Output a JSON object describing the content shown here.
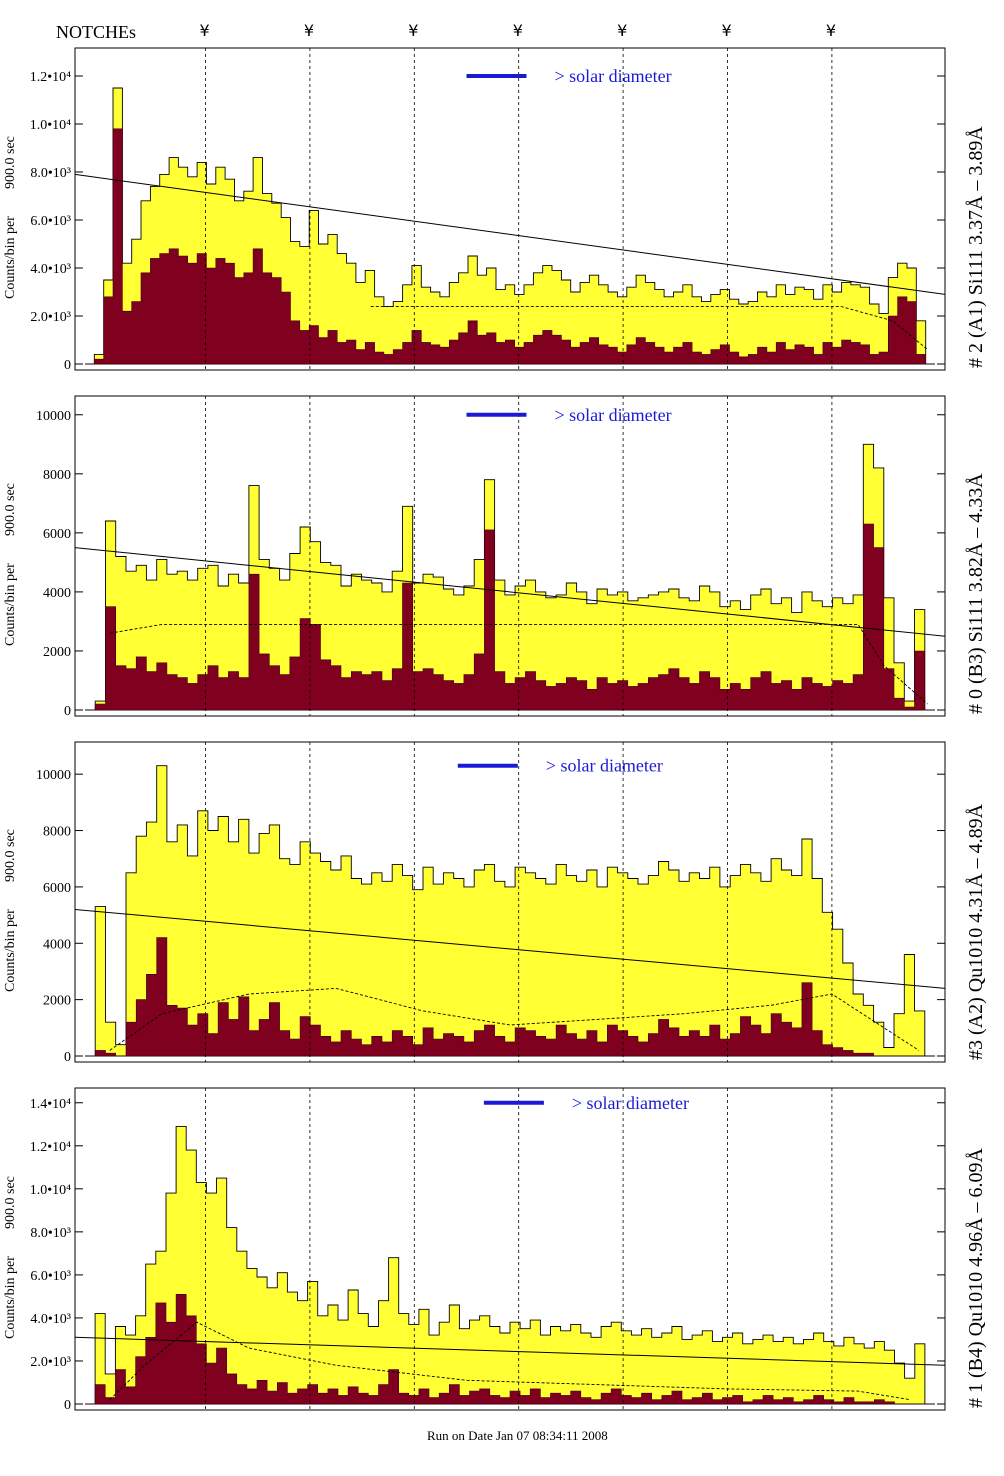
{
  "header": {
    "notches_label": "NOTCHEs",
    "notch_symbol": "¥",
    "notch_positions_x": [
      0.17,
      0.29,
      0.41,
      0.53,
      0.65,
      0.77,
      0.89
    ]
  },
  "footer": {
    "text": "Run on Date Jan 07 08:34:11 2008"
  },
  "legend": {
    "text": "> solar diameter",
    "color": "#1a1ad6"
  },
  "colors": {
    "total_fill": "#ffff33",
    "sub_fill": "#800020",
    "frame": "#000000"
  },
  "y_axis_title": [
    "Counts/bin per",
    "900.0 sec"
  ],
  "chart_data": [
    {
      "type": "histogram",
      "title": "# 2 (A1) Si111  3.37Å – 3.89Å",
      "ylabel": "Counts/bin per 900.0 sec",
      "ylim": [
        0,
        13000
      ],
      "yticks": [
        {
          "v": 0,
          "t": "0"
        },
        {
          "v": 2000,
          "t": "2.0•10³"
        },
        {
          "v": 4000,
          "t": "4.0•10³"
        },
        {
          "v": 6000,
          "t": "6.0•10³"
        },
        {
          "v": 8000,
          "t": "8.0•10³"
        },
        {
          "v": 10000,
          "t": "1.0•10⁴"
        },
        {
          "v": 12000,
          "t": "1.2•10⁴"
        }
      ],
      "envelope_total": [
        0,
        400,
        3500,
        11500,
        4200,
        5200,
        6800,
        7400,
        7900,
        8600,
        8200,
        7800,
        8400,
        7500,
        8200,
        7700,
        6800,
        7200,
        8600,
        7100,
        6700,
        6100,
        5100,
        4900,
        6400,
        5000,
        5400,
        4600,
        4200,
        3400,
        3900,
        2800,
        2400,
        2600,
        3300,
        4100,
        3200,
        3000,
        2800,
        3400,
        3800,
        4500,
        3700,
        4000,
        3100,
        3300,
        2900,
        3300,
        3800,
        4100,
        3900,
        3500,
        3000,
        3400,
        3700,
        3300,
        3000,
        2800,
        3200,
        3700,
        3400,
        3100,
        2800,
        3000,
        3300,
        2800,
        2600,
        2900,
        3100,
        2700,
        2500,
        2600,
        3000,
        2800,
        3300,
        2900,
        3200,
        3100,
        2700,
        3300,
        3000,
        3400,
        3300,
        3200,
        2500,
        2100,
        3600,
        4200,
        4000,
        1800,
        0
      ],
      "envelope_sub": [
        0,
        200,
        2800,
        9800,
        2200,
        2600,
        3800,
        4400,
        4600,
        4800,
        4500,
        4200,
        4600,
        4000,
        4400,
        4200,
        3600,
        3800,
        4800,
        3800,
        3600,
        3000,
        1800,
        1400,
        1600,
        1100,
        1400,
        900,
        1000,
        600,
        900,
        500,
        400,
        600,
        900,
        1400,
        900,
        800,
        700,
        1000,
        1300,
        1800,
        1200,
        1300,
        900,
        1000,
        700,
        900,
        1200,
        1400,
        1200,
        1000,
        700,
        900,
        1100,
        800,
        700,
        500,
        800,
        1100,
        900,
        700,
        500,
        700,
        900,
        500,
        400,
        600,
        800,
        500,
        300,
        400,
        700,
        500,
        900,
        600,
        800,
        700,
        400,
        900,
        700,
        1000,
        900,
        800,
        400,
        500,
        2000,
        2800,
        2600,
        400,
        0
      ],
      "fit_line": [
        [
          0,
          7900
        ],
        [
          1,
          2900
        ]
      ],
      "dash_curve": [
        [
          0.34,
          2400
        ],
        [
          0.45,
          2400
        ],
        [
          0.6,
          2400
        ],
        [
          0.75,
          2400
        ],
        [
          0.88,
          2400
        ],
        [
          0.94,
          1800
        ],
        [
          0.98,
          600
        ]
      ],
      "legend_bar": {
        "x": 0.45,
        "y": 12000
      }
    },
    {
      "type": "histogram",
      "title": "# 0 (B3) Si111  3.82Å – 4.33Å",
      "ylabel": "Counts/bin per 900.0 sec",
      "ylim": [
        0,
        10500
      ],
      "yticks": [
        {
          "v": 0,
          "t": "0"
        },
        {
          "v": 2000,
          "t": "2000"
        },
        {
          "v": 4000,
          "t": "4000"
        },
        {
          "v": 6000,
          "t": "6000"
        },
        {
          "v": 8000,
          "t": "8000"
        },
        {
          "v": 10000,
          "t": "10000"
        }
      ],
      "envelope_total": [
        0,
        300,
        6400,
        5200,
        4700,
        4900,
        4400,
        5100,
        4600,
        4700,
        4400,
        4800,
        4900,
        4200,
        4600,
        4300,
        7600,
        5100,
        4800,
        4400,
        5300,
        6200,
        5700,
        5000,
        4900,
        4200,
        4600,
        4400,
        4300,
        4000,
        4700,
        6900,
        4300,
        4600,
        4500,
        4100,
        3900,
        4200,
        5100,
        7800,
        4400,
        3900,
        4200,
        4400,
        4000,
        3800,
        3900,
        4300,
        4000,
        3600,
        4100,
        3900,
        4000,
        3700,
        3800,
        3900,
        4000,
        4100,
        3800,
        3700,
        4200,
        4000,
        3500,
        3700,
        3400,
        3900,
        4100,
        3600,
        3800,
        3300,
        4000,
        3700,
        3500,
        3800,
        3600,
        3900,
        9000,
        8200,
        3800,
        1600,
        300,
        3400,
        0
      ],
      "envelope_sub": [
        0,
        200,
        3500,
        1500,
        1400,
        1800,
        1300,
        1600,
        1200,
        1100,
        900,
        1200,
        1500,
        1100,
        1300,
        1100,
        4600,
        1900,
        1500,
        1200,
        1800,
        3100,
        2900,
        1700,
        1500,
        1100,
        1300,
        1200,
        1300,
        1000,
        1400,
        4300,
        1300,
        1400,
        1200,
        1000,
        900,
        1200,
        1900,
        6100,
        1300,
        900,
        1100,
        1300,
        1000,
        800,
        900,
        1100,
        1000,
        700,
        1100,
        900,
        1000,
        800,
        900,
        1100,
        1200,
        1400,
        1100,
        900,
        1300,
        1100,
        700,
        900,
        700,
        1100,
        1300,
        900,
        1000,
        700,
        1100,
        900,
        800,
        1000,
        900,
        1200,
        6300,
        5500,
        1400,
        400,
        100,
        2000,
        0
      ],
      "fit_line": [
        [
          0,
          5500
        ],
        [
          1,
          2500
        ]
      ],
      "dash_curve": [
        [
          0.04,
          2600
        ],
        [
          0.1,
          2900
        ],
        [
          0.3,
          2900
        ],
        [
          0.5,
          2900
        ],
        [
          0.7,
          2900
        ],
        [
          0.9,
          2900
        ],
        [
          0.93,
          1500
        ],
        [
          0.98,
          200
        ]
      ],
      "legend_bar": {
        "x": 0.45,
        "y": 10000
      }
    },
    {
      "type": "histogram",
      "title": "#3 (A2) Qu1010  4.31Å – 4.89Å",
      "ylabel": "Counts/bin per 900.0 sec",
      "ylim": [
        0,
        11000
      ],
      "yticks": [
        {
          "v": 0,
          "t": "0"
        },
        {
          "v": 2000,
          "t": "2000"
        },
        {
          "v": 4000,
          "t": "4000"
        },
        {
          "v": 6000,
          "t": "6000"
        },
        {
          "v": 8000,
          "t": "8000"
        },
        {
          "v": 10000,
          "t": "10000"
        }
      ],
      "envelope_total": [
        0,
        5300,
        1200,
        400,
        6500,
        7800,
        8300,
        10300,
        7600,
        8200,
        7100,
        8700,
        8000,
        8500,
        7600,
        8400,
        7200,
        7900,
        8200,
        7000,
        6800,
        7600,
        7200,
        6900,
        6600,
        7100,
        6300,
        6100,
        6500,
        6200,
        6800,
        6400,
        5900,
        6700,
        6100,
        6500,
        6300,
        6000,
        6600,
        6800,
        6200,
        6000,
        6700,
        6500,
        6300,
        6100,
        6800,
        6400,
        6200,
        6600,
        6000,
        6700,
        6500,
        6300,
        6100,
        6400,
        6900,
        6600,
        6200,
        6500,
        6300,
        6700,
        6000,
        6400,
        6800,
        6500,
        6200,
        7000,
        6600,
        6400,
        7700,
        6300,
        5100,
        4500,
        3300,
        2200,
        1800,
        1200,
        300,
        1500,
        3600,
        1600,
        0
      ],
      "envelope_sub": [
        0,
        200,
        100,
        0,
        1200,
        2000,
        2900,
        4200,
        1800,
        1700,
        1100,
        1500,
        800,
        1900,
        1300,
        2100,
        900,
        1300,
        1900,
        900,
        600,
        1400,
        1100,
        700,
        500,
        900,
        600,
        400,
        700,
        500,
        900,
        700,
        400,
        1000,
        600,
        800,
        700,
        500,
        900,
        1100,
        700,
        500,
        1000,
        900,
        700,
        600,
        1100,
        800,
        600,
        900,
        500,
        1100,
        900,
        700,
        500,
        800,
        1300,
        1000,
        700,
        900,
        700,
        1100,
        600,
        800,
        1400,
        1100,
        800,
        1500,
        1200,
        1000,
        2600,
        900,
        400,
        300,
        200,
        100,
        100,
        0,
        0,
        0,
        0,
        0,
        0
      ],
      "fit_line": [
        [
          0,
          5200
        ],
        [
          1,
          2400
        ]
      ],
      "dash_curve": [
        [
          0.04,
          200
        ],
        [
          0.1,
          1500
        ],
        [
          0.2,
          2200
        ],
        [
          0.3,
          2400
        ],
        [
          0.4,
          1600
        ],
        [
          0.5,
          1100
        ],
        [
          0.6,
          1300
        ],
        [
          0.7,
          1500
        ],
        [
          0.8,
          1800
        ],
        [
          0.87,
          2200
        ],
        [
          0.92,
          1200
        ],
        [
          0.97,
          200
        ]
      ],
      "legend_bar": {
        "x": 0.44,
        "y": 10300
      }
    },
    {
      "type": "histogram",
      "title": "# 1 (B4) Qu1010  4.96Å – 6.09Å",
      "ylabel": "Counts/bin per 900.0 sec",
      "ylim": [
        0,
        14500
      ],
      "yticks": [
        {
          "v": 0,
          "t": "0"
        },
        {
          "v": 2000,
          "t": "2.0•10³"
        },
        {
          "v": 4000,
          "t": "4.0•10³"
        },
        {
          "v": 6000,
          "t": "6.0•10³"
        },
        {
          "v": 8000,
          "t": "8.0•10³"
        },
        {
          "v": 10000,
          "t": "1.0•10⁴"
        },
        {
          "v": 12000,
          "t": "1.2•10⁴"
        },
        {
          "v": 14000,
          "t": "1.4•10⁴"
        }
      ],
      "envelope_total": [
        0,
        4200,
        1400,
        3600,
        3200,
        4100,
        6500,
        7100,
        9800,
        12900,
        11800,
        10300,
        9800,
        10500,
        8200,
        7100,
        6300,
        5900,
        5400,
        6100,
        5200,
        4800,
        5700,
        4100,
        4600,
        3900,
        5300,
        4200,
        3600,
        4800,
        6800,
        4200,
        3700,
        4400,
        3200,
        3800,
        4600,
        3500,
        3900,
        4100,
        3600,
        3300,
        3800,
        3500,
        3900,
        3200,
        3600,
        3400,
        3700,
        3300,
        3100,
        3600,
        3800,
        3400,
        3200,
        3500,
        3100,
        3300,
        3600,
        3000,
        3200,
        3400,
        2900,
        3100,
        3300,
        2800,
        3000,
        3200,
        2900,
        3100,
        2800,
        3000,
        3300,
        2900,
        2700,
        3100,
        2800,
        2600,
        2900,
        2500,
        1900,
        1200,
        2800,
        0
      ],
      "envelope_sub": [
        0,
        900,
        300,
        1600,
        800,
        2200,
        3100,
        4700,
        3800,
        5100,
        4100,
        2800,
        1900,
        2600,
        1400,
        900,
        700,
        1100,
        600,
        1000,
        500,
        700,
        900,
        500,
        700,
        400,
        800,
        500,
        400,
        900,
        1600,
        500,
        400,
        700,
        300,
        500,
        900,
        400,
        600,
        700,
        400,
        300,
        600,
        400,
        700,
        300,
        500,
        400,
        600,
        300,
        200,
        500,
        700,
        400,
        300,
        500,
        200,
        400,
        600,
        200,
        300,
        500,
        200,
        300,
        400,
        100,
        200,
        400,
        200,
        300,
        100,
        200,
        400,
        200,
        100,
        300,
        100,
        100,
        200,
        100,
        0,
        0,
        0,
        0
      ],
      "fit_line": [
        [
          0,
          3100
        ],
        [
          1,
          1800
        ]
      ],
      "dash_curve": [
        [
          0.04,
          200
        ],
        [
          0.08,
          1800
        ],
        [
          0.14,
          3800
        ],
        [
          0.2,
          2600
        ],
        [
          0.3,
          1800
        ],
        [
          0.45,
          1100
        ],
        [
          0.6,
          900
        ],
        [
          0.75,
          700
        ],
        [
          0.9,
          600
        ],
        [
          0.96,
          200
        ]
      ],
      "legend_bar": {
        "x": 0.47,
        "y": 14000
      }
    }
  ]
}
